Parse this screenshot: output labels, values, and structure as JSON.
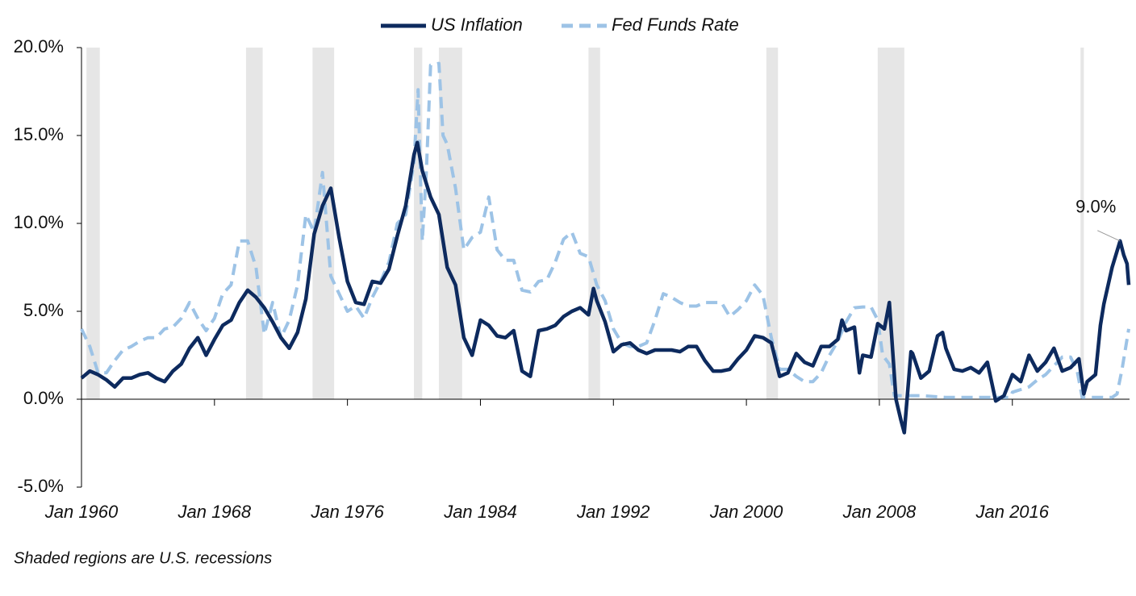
{
  "chart_data": {
    "type": "line",
    "series": [
      {
        "name": "US Inflation",
        "color": "#0d2a5e",
        "dash": false,
        "x": [
          1960.0,
          1960.5,
          1961.0,
          1961.5,
          1962.0,
          1962.5,
          1963.0,
          1963.5,
          1964.0,
          1964.5,
          1965.0,
          1965.5,
          1966.0,
          1966.5,
          1967.0,
          1967.5,
          1968.0,
          1968.5,
          1969.0,
          1969.5,
          1970.0,
          1970.5,
          1971.0,
          1971.5,
          1972.0,
          1972.5,
          1973.0,
          1973.5,
          1974.0,
          1974.5,
          1975.0,
          1975.5,
          1976.0,
          1976.5,
          1977.0,
          1977.5,
          1978.0,
          1978.5,
          1979.0,
          1979.5,
          1980.0,
          1980.2,
          1980.5,
          1981.0,
          1981.5,
          1982.0,
          1982.5,
          1983.0,
          1983.5,
          1984.0,
          1984.5,
          1985.0,
          1985.5,
          1986.0,
          1986.5,
          1987.0,
          1987.5,
          1988.0,
          1988.5,
          1989.0,
          1989.5,
          1990.0,
          1990.5,
          1990.8,
          1991.0,
          1991.5,
          1992.0,
          1992.5,
          1993.0,
          1993.5,
          1994.0,
          1994.5,
          1995.0,
          1995.5,
          1996.0,
          1996.5,
          1997.0,
          1997.5,
          1998.0,
          1998.5,
          1999.0,
          1999.5,
          2000.0,
          2000.5,
          2001.0,
          2001.5,
          2002.0,
          2002.5,
          2003.0,
          2003.5,
          2004.0,
          2004.5,
          2005.0,
          2005.5,
          2005.75,
          2006.0,
          2006.5,
          2006.8,
          2007.0,
          2007.5,
          2007.9,
          2008.3,
          2008.6,
          2009.0,
          2009.3,
          2009.5,
          2009.9,
          2010.0,
          2010.5,
          2011.0,
          2011.5,
          2011.8,
          2012.0,
          2012.5,
          2013.0,
          2013.5,
          2014.0,
          2014.5,
          2015.0,
          2015.5,
          2016.0,
          2016.5,
          2017.0,
          2017.5,
          2018.0,
          2018.5,
          2019.0,
          2019.5,
          2020.0,
          2020.3,
          2020.5,
          2021.0,
          2021.3,
          2021.5,
          2022.0,
          2022.48,
          2022.7,
          2022.9,
          2023.0
        ],
        "values": [
          1.2,
          1.6,
          1.4,
          1.1,
          0.7,
          1.2,
          1.2,
          1.4,
          1.5,
          1.2,
          1.0,
          1.6,
          2.0,
          2.9,
          3.5,
          2.5,
          3.4,
          4.2,
          4.5,
          5.5,
          6.2,
          5.8,
          5.2,
          4.4,
          3.5,
          2.9,
          3.8,
          5.7,
          9.4,
          11.0,
          12.0,
          9.2,
          6.7,
          5.5,
          5.4,
          6.7,
          6.6,
          7.4,
          9.3,
          11.0,
          13.9,
          14.6,
          13.0,
          11.5,
          10.5,
          7.5,
          6.5,
          3.5,
          2.5,
          4.5,
          4.2,
          3.6,
          3.5,
          3.9,
          1.6,
          1.3,
          3.9,
          4.0,
          4.2,
          4.7,
          5.0,
          5.2,
          4.8,
          6.3,
          5.6,
          4.4,
          2.7,
          3.1,
          3.2,
          2.8,
          2.6,
          2.8,
          2.8,
          2.8,
          2.7,
          3.0,
          3.0,
          2.2,
          1.6,
          1.6,
          1.7,
          2.3,
          2.8,
          3.6,
          3.5,
          3.2,
          1.3,
          1.5,
          2.6,
          2.1,
          1.9,
          3.0,
          3.0,
          3.4,
          4.5,
          3.9,
          4.1,
          1.5,
          2.5,
          2.4,
          4.3,
          4.0,
          5.5,
          0.0,
          -1.2,
          -1.9,
          2.7,
          2.6,
          1.2,
          1.6,
          3.6,
          3.8,
          2.9,
          1.7,
          1.6,
          1.8,
          1.5,
          2.1,
          -0.1,
          0.2,
          1.4,
          1.0,
          2.5,
          1.6,
          2.1,
          2.9,
          1.6,
          1.8,
          2.3,
          0.3,
          1.0,
          1.4,
          4.2,
          5.4,
          7.5,
          9.0,
          8.2,
          7.7,
          6.5
        ]
      },
      {
        "name": "Fed Funds Rate",
        "color": "#9dc3e6",
        "dash": true,
        "x": [
          1960.0,
          1960.5,
          1961.0,
          1961.5,
          1962.0,
          1962.5,
          1963.0,
          1963.5,
          1964.0,
          1964.5,
          1965.0,
          1965.5,
          1966.0,
          1966.5,
          1967.0,
          1967.5,
          1968.0,
          1968.5,
          1969.0,
          1969.5,
          1970.0,
          1970.5,
          1971.0,
          1971.5,
          1972.0,
          1972.5,
          1973.0,
          1973.5,
          1974.0,
          1974.5,
          1975.0,
          1975.5,
          1976.0,
          1976.5,
          1977.0,
          1977.5,
          1978.0,
          1978.5,
          1979.0,
          1979.5,
          1980.0,
          1980.25,
          1980.5,
          1980.75,
          1981.0,
          1981.5,
          1981.75,
          1982.0,
          1982.5,
          1983.0,
          1983.5,
          1984.0,
          1984.5,
          1985.0,
          1985.5,
          1986.0,
          1986.5,
          1987.0,
          1987.5,
          1988.0,
          1988.5,
          1989.0,
          1989.5,
          1990.0,
          1990.5,
          1991.0,
          1991.5,
          1992.0,
          1992.5,
          1993.0,
          1993.5,
          1994.0,
          1994.5,
          1995.0,
          1995.5,
          1996.0,
          1996.5,
          1997.0,
          1997.5,
          1998.0,
          1998.5,
          1999.0,
          1999.5,
          2000.0,
          2000.5,
          2001.0,
          2001.5,
          2002.0,
          2002.5,
          2003.0,
          2003.5,
          2004.0,
          2004.5,
          2005.0,
          2005.5,
          2006.0,
          2006.5,
          2007.0,
          2007.5,
          2007.9,
          2008.2,
          2008.6,
          2008.9,
          2009.5,
          2010.5,
          2012.0,
          2014.0,
          2015.9,
          2016.0,
          2017.0,
          2017.5,
          2018.0,
          2018.5,
          2019.0,
          2019.5,
          2019.9,
          2020.2,
          2021.0,
          2022.0,
          2022.3,
          2022.6,
          2023.0
        ],
        "values": [
          4.0,
          3.0,
          1.5,
          1.5,
          2.2,
          2.8,
          3.0,
          3.3,
          3.5,
          3.5,
          4.0,
          4.1,
          4.6,
          5.5,
          4.6,
          3.9,
          4.6,
          6.0,
          6.5,
          9.0,
          9.0,
          7.5,
          3.7,
          5.5,
          3.5,
          4.5,
          6.5,
          10.5,
          9.5,
          12.9,
          7.0,
          6.0,
          5.0,
          5.3,
          4.6,
          5.8,
          6.7,
          7.8,
          10.0,
          10.5,
          13.5,
          17.6,
          9.0,
          13.0,
          19.0,
          19.1,
          15.0,
          14.5,
          12.0,
          8.5,
          9.2,
          9.5,
          11.5,
          8.5,
          7.9,
          7.9,
          6.2,
          6.1,
          6.7,
          6.8,
          7.8,
          9.1,
          9.5,
          8.3,
          8.1,
          6.5,
          5.6,
          4.0,
          3.2,
          3.0,
          3.0,
          3.2,
          4.5,
          6.0,
          5.8,
          5.5,
          5.3,
          5.3,
          5.5,
          5.5,
          5.5,
          4.7,
          5.1,
          5.6,
          6.5,
          5.9,
          3.5,
          1.7,
          1.7,
          1.3,
          1.0,
          1.0,
          1.5,
          2.5,
          3.3,
          4.4,
          5.2,
          5.25,
          5.25,
          4.5,
          2.5,
          2.0,
          0.2,
          0.2,
          0.2,
          0.1,
          0.1,
          0.1,
          0.4,
          0.7,
          1.1,
          1.4,
          1.9,
          2.4,
          2.4,
          1.6,
          0.1,
          0.1,
          0.1,
          0.3,
          1.7,
          4.0
        ]
      }
    ],
    "recessions": [
      [
        1960.3,
        1961.1
      ],
      [
        1969.9,
        1970.9
      ],
      [
        1973.9,
        1975.2
      ],
      [
        1980.0,
        1980.5
      ],
      [
        1981.5,
        1982.9
      ],
      [
        1990.5,
        1991.2
      ],
      [
        2001.2,
        2001.9
      ],
      [
        2007.9,
        2009.5
      ],
      [
        2020.1,
        2020.3
      ]
    ],
    "xlim": [
      1960,
      2023.05
    ],
    "xticks": [
      {
        "value": 1960,
        "label": "Jan 1960"
      },
      {
        "value": 1968,
        "label": "Jan 1968"
      },
      {
        "value": 1976,
        "label": "Jan 1976"
      },
      {
        "value": 1984,
        "label": "Jan 1984"
      },
      {
        "value": 1992,
        "label": "Jan 1992"
      },
      {
        "value": 2000,
        "label": "Jan 2000"
      },
      {
        "value": 2008,
        "label": "Jan 2008"
      },
      {
        "value": 2016,
        "label": "Jan 2016"
      }
    ],
    "ylim": [
      -5,
      20
    ],
    "yticks": [
      {
        "value": -5,
        "label": "-5.0%"
      },
      {
        "value": 0,
        "label": "0.0%"
      },
      {
        "value": 5,
        "label": "5.0%"
      },
      {
        "value": 10,
        "label": "10.0%"
      },
      {
        "value": 15,
        "label": "15.0%"
      },
      {
        "value": 20,
        "label": "20.0%"
      }
    ],
    "annotations": [
      {
        "text": "9.0%",
        "x": 2022.48,
        "y": 9.0
      }
    ],
    "footnote": "Shaded regions are U.S. recessions",
    "recession_color": "#e6e6e6"
  }
}
